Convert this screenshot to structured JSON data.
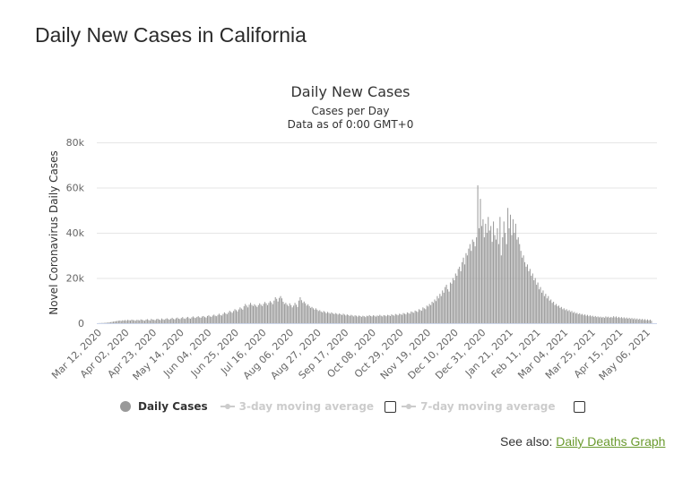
{
  "page": {
    "title": "Daily New Cases in California",
    "see_also_label": "See also:",
    "see_also_link": "Daily Deaths Graph"
  },
  "colors": {
    "bar": "#999999",
    "grid": "#e6e6e6",
    "baseline": "#ccd6eb",
    "link": "#6a9a2e",
    "legend_inactive": "#cccccc"
  },
  "legend": [
    {
      "label": "Daily Cases",
      "active": true
    },
    {
      "label": "3-day moving average",
      "active": false,
      "checked": false
    },
    {
      "label": "7-day moving average",
      "active": false,
      "checked": false
    }
  ],
  "chart_data": {
    "type": "bar",
    "title": "Daily New Cases",
    "subtitle": "Cases per Day",
    "subtitle2": "Data as of 0:00 GMT+0",
    "ylabel": "Novel Coronavirus Daily Cases",
    "xlabel": "",
    "ylim": [
      0,
      80000
    ],
    "yticks": [
      0,
      20000,
      40000,
      60000,
      80000
    ],
    "ytick_labels": [
      "0",
      "20k",
      "40k",
      "60k",
      "80k"
    ],
    "grid": true,
    "legend_position": "bottom",
    "x_start": "Mar 12, 2020",
    "x_tick_labels": [
      "Mar 12, 2020",
      "Apr 02, 2020",
      "Apr 23, 2020",
      "May 14, 2020",
      "Jun 04, 2020",
      "Jun 25, 2020",
      "Jul 16, 2020",
      "Aug 06, 2020",
      "Aug 27, 2020",
      "Sep 17, 2020",
      "Oct 08, 2020",
      "Oct 29, 2020",
      "Nov 19, 2020",
      "Dec 10, 2020",
      "Dec 31, 2020",
      "Jan 21, 2021",
      "Feb 11, 2021",
      "Mar 04, 2021",
      "Mar 25, 2021",
      "Apr 15, 2021",
      "May 06, 2021"
    ],
    "tick_interval_days": 21,
    "series": [
      {
        "name": "Daily Cases",
        "note": "one value per day starting Mar 12, 2020",
        "values": [
          50,
          80,
          100,
          120,
          150,
          200,
          250,
          300,
          400,
          500,
          600,
          700,
          800,
          900,
          1000,
          1100,
          1200,
          1000,
          1300,
          1200,
          1400,
          1100,
          1500,
          1300,
          1200,
          1600,
          1400,
          1300,
          1100,
          1500,
          1400,
          1200,
          1700,
          1500,
          1300,
          1100,
          1600,
          1800,
          1400,
          1200,
          1900,
          1600,
          1500,
          1300,
          1800,
          2000,
          1600,
          1400,
          2100,
          1700,
          1500,
          1900,
          2200,
          1800,
          1600,
          2000,
          2400,
          1900,
          1700,
          2200,
          2500,
          2000,
          1800,
          2300,
          2700,
          2100,
          1900,
          2500,
          2800,
          2200,
          2000,
          2600,
          3000,
          2500,
          2300,
          2800,
          3100,
          2600,
          2400,
          3000,
          3200,
          2700,
          2500,
          3200,
          3500,
          3000,
          2800,
          3400,
          3800,
          3300,
          3100,
          3700,
          4200,
          3600,
          3400,
          4100,
          4800,
          4300,
          4000,
          4700,
          5500,
          5000,
          4600,
          5400,
          6200,
          5800,
          5200,
          6100,
          7000,
          6500,
          6000,
          7500,
          8500,
          7800,
          7000,
          8200,
          9000,
          8100,
          7600,
          8400,
          7800,
          7200,
          8000,
          8800,
          8200,
          7600,
          8600,
          9400,
          8800,
          8000,
          9000,
          9800,
          9200,
          8400,
          10000,
          11500,
          10800,
          9600,
          11200,
          12000,
          11000,
          9500,
          8500,
          9000,
          8200,
          7600,
          8800,
          8000,
          7000,
          7800,
          9000,
          8200,
          7200,
          10000,
          11500,
          10200,
          9000,
          9600,
          8800,
          7800,
          8400,
          7600,
          6800,
          7200,
          6600,
          6000,
          6600,
          6000,
          5400,
          5800,
          5200,
          4800,
          5400,
          5000,
          4400,
          5000,
          4600,
          4200,
          4800,
          4400,
          4000,
          4500,
          4200,
          3800,
          4300,
          4000,
          3600,
          4200,
          3800,
          3400,
          3900,
          3600,
          3200,
          3700,
          3400,
          3000,
          3500,
          3300,
          2900,
          3400,
          3200,
          2800,
          3300,
          3100,
          2700,
          3300,
          3100,
          3600,
          3200,
          3000,
          3500,
          3300,
          2900,
          3400,
          3200,
          3700,
          3300,
          3000,
          3600,
          3400,
          3100,
          3700,
          3500,
          3200,
          3900,
          3600,
          3300,
          4100,
          3800,
          3500,
          4200,
          4000,
          3700,
          4500,
          4200,
          3900,
          4800,
          4500,
          4200,
          5200,
          4900,
          4600,
          5600,
          5300,
          5000,
          6200,
          5800,
          5500,
          7000,
          6600,
          6200,
          7800,
          7400,
          8500,
          8000,
          9500,
          9000,
          10500,
          9800,
          12000,
          11000,
          13000,
          12000,
          14500,
          13500,
          16000,
          17000,
          15000,
          14000,
          18000,
          17500,
          20000,
          19000,
          22000,
          21000,
          24000,
          25000,
          23000,
          27000,
          29000,
          26000,
          31000,
          30000,
          33000,
          35000,
          32000,
          37000,
          36000,
          34000,
          38000,
          61000,
          42000,
          55000,
          43000,
          46000,
          38000,
          44000,
          40000,
          47000,
          41000,
          43000,
          36000,
          45000,
          39000,
          37000,
          42000,
          35000,
          47000,
          30000,
          38000,
          45000,
          40000,
          35000,
          51000,
          42000,
          48000,
          39000,
          46000,
          40000,
          44000,
          37000,
          38000,
          35000,
          32000,
          29000,
          30000,
          27000,
          25000,
          26000,
          23000,
          24000,
          21000,
          22000,
          19000,
          20000,
          17000,
          18000,
          15000,
          16000,
          13500,
          14500,
          12000,
          13000,
          11000,
          12000,
          10000,
          10500,
          9000,
          9500,
          8000,
          8500,
          7500,
          7800,
          6800,
          7200,
          6200,
          6600,
          5800,
          6200,
          5400,
          5800,
          5000,
          5400,
          4600,
          5000,
          4300,
          4600,
          4000,
          4400,
          3800,
          4100,
          3500,
          3900,
          3300,
          3700,
          3100,
          3500,
          3000,
          3300,
          2800,
          3200,
          2700,
          3000,
          2600,
          2900,
          2500,
          2800,
          2400,
          3000,
          2600,
          2900,
          2400,
          2800,
          2500,
          3100,
          2600,
          3000,
          2400,
          2800,
          2300,
          2700,
          2200,
          2600,
          2100,
          2500,
          2000,
          2400,
          1900,
          2300,
          1800,
          2200,
          1700,
          2100,
          1600,
          2000,
          1500,
          1900,
          1400,
          1800,
          1300,
          1700,
          1200,
          1600,
          1100
        ]
      }
    ]
  }
}
